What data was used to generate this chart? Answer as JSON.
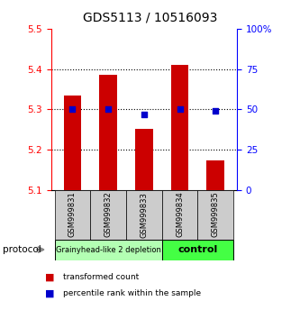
{
  "title": "GDS5113 / 10516093",
  "samples": [
    "GSM999831",
    "GSM999832",
    "GSM999833",
    "GSM999834",
    "GSM999835"
  ],
  "bar_values": [
    5.335,
    5.385,
    5.252,
    5.41,
    5.172
  ],
  "percentile_values": [
    50,
    50,
    47,
    50,
    49
  ],
  "bar_color": "#cc0000",
  "percentile_color": "#0000cc",
  "ylim_left": [
    5.1,
    5.5
  ],
  "ylim_right": [
    0,
    100
  ],
  "yticks_left": [
    5.1,
    5.2,
    5.3,
    5.4,
    5.5
  ],
  "yticks_right": [
    0,
    25,
    50,
    75,
    100
  ],
  "ytick_labels_right": [
    "0",
    "25",
    "50",
    "75",
    "100%"
  ],
  "groups": [
    {
      "label": "Grainyhead-like 2 depletion",
      "indices": [
        0,
        1,
        2
      ],
      "color": "#b3ffb3"
    },
    {
      "label": "control",
      "indices": [
        3,
        4
      ],
      "color": "#44ff44"
    }
  ],
  "protocol_label": "protocol",
  "legend_bar_label": "transformed count",
  "legend_pct_label": "percentile rank within the sample",
  "background_color": "#ffffff",
  "dotted_lines": [
    5.2,
    5.3,
    5.4
  ],
  "bar_width": 0.5,
  "sample_bg_color": "#cccccc",
  "title_fontsize": 10,
  "tick_fontsize": 7.5
}
